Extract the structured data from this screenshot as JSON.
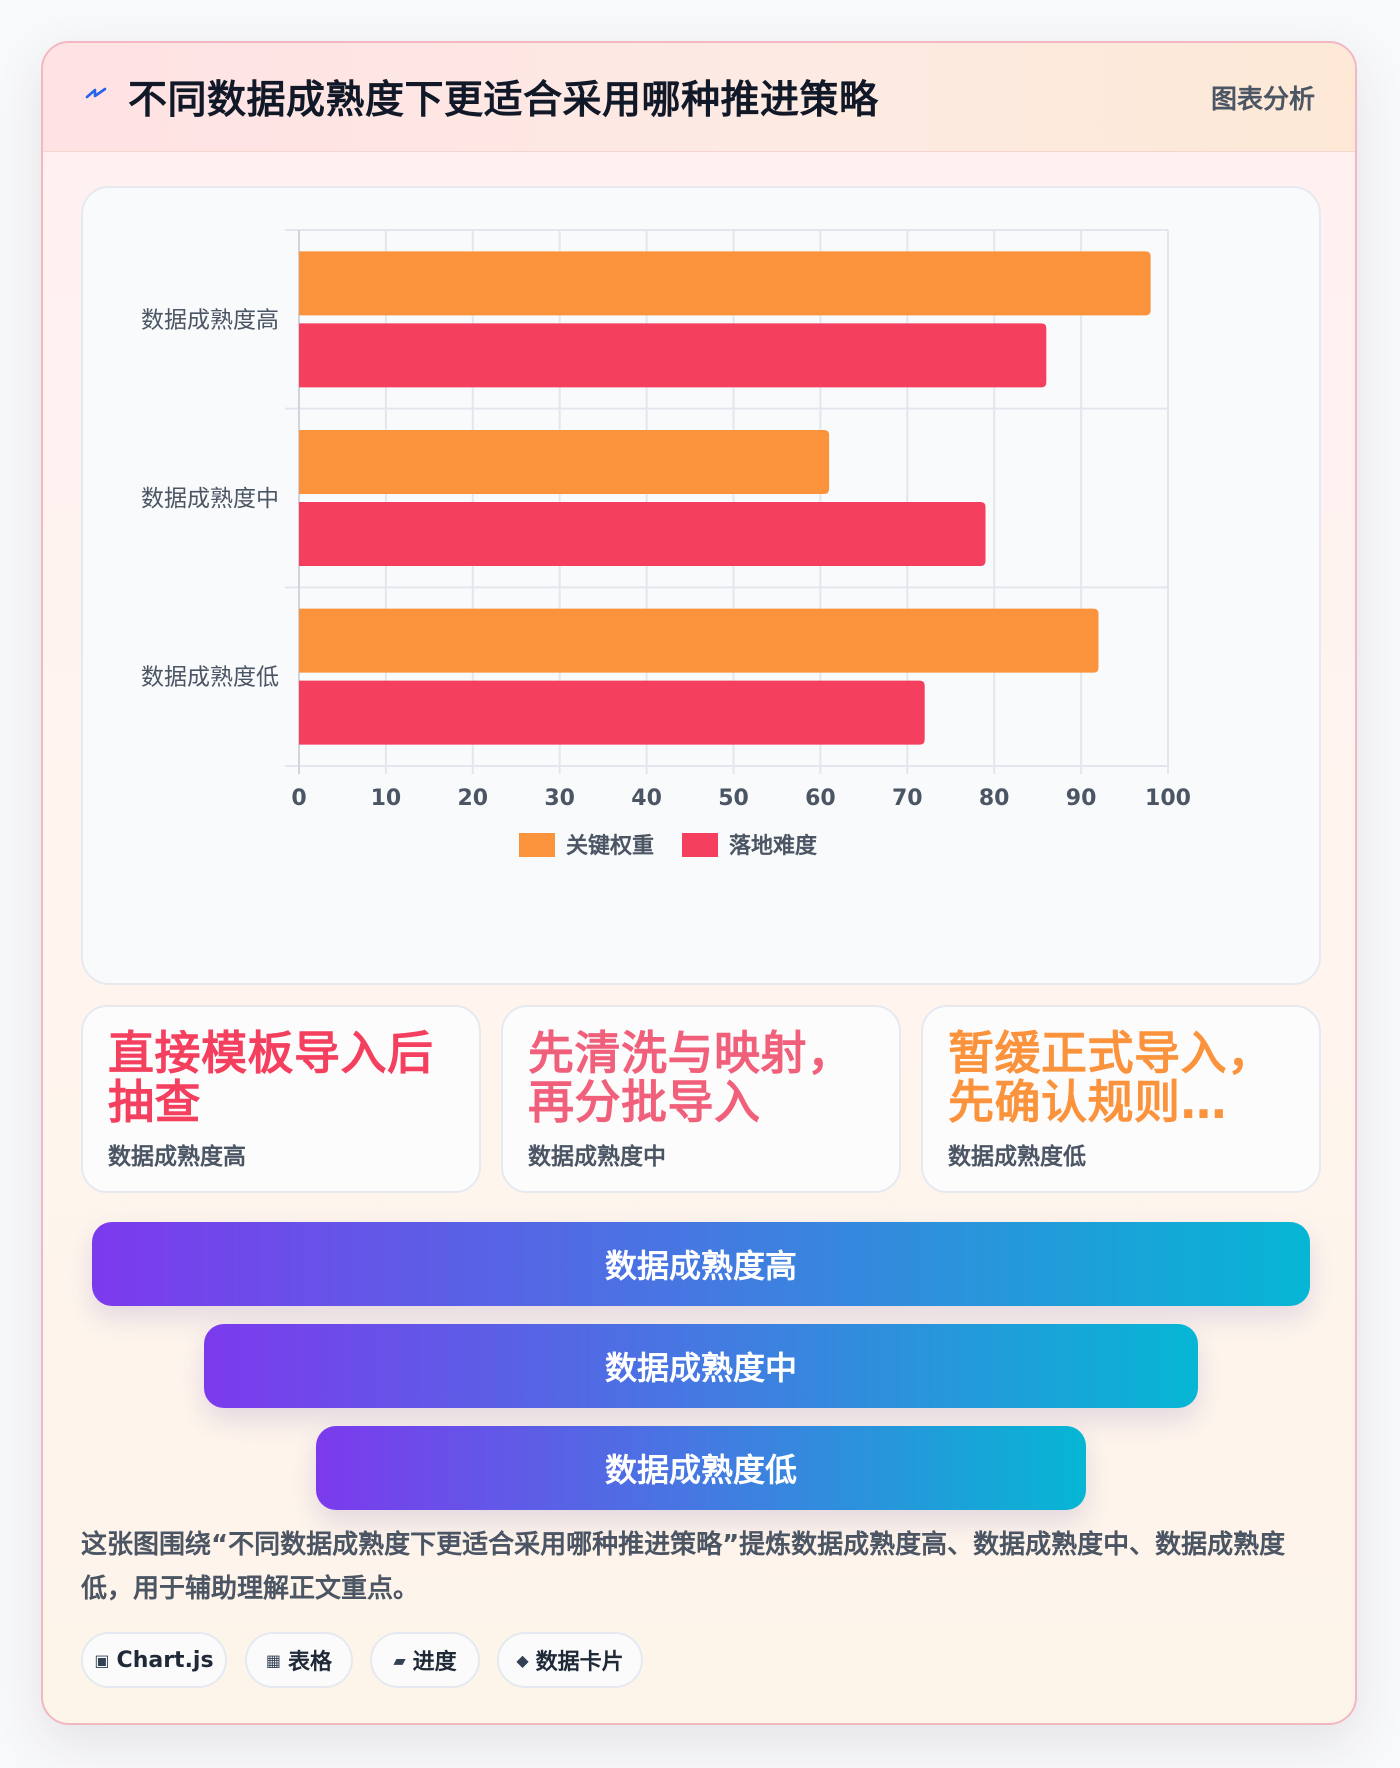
{
  "header": {
    "title": "不同数据成熟度下更适合采用哪种推进策略",
    "tag": "图表分析"
  },
  "chart_data": {
    "type": "bar",
    "orientation": "horizontal",
    "categories": [
      "数据成熟度高",
      "数据成熟度中",
      "数据成熟度低"
    ],
    "series": [
      {
        "name": "关键权重",
        "color": "#fb923c",
        "values": [
          98,
          61,
          92
        ]
      },
      {
        "name": "落地难度",
        "color": "#f43f5e",
        "values": [
          86,
          79,
          72
        ]
      }
    ],
    "xlim": [
      0,
      100
    ],
    "xticks": [
      0,
      10,
      20,
      30,
      40,
      50,
      60,
      70,
      80,
      90,
      100
    ],
    "grid": true,
    "legend": "bottom"
  },
  "metrics": [
    {
      "value": "直接模板导入后抽查",
      "label": "数据成熟度高",
      "color": "#f43f5e"
    },
    {
      "value": "先清洗与映射，再分批导入",
      "label": "数据成熟度中",
      "color": "#f1607a"
    },
    {
      "value": "暂缓正式导入，先确认规则…",
      "label": "数据成熟度低",
      "color": "#fb923c"
    }
  ],
  "funnel": [
    "数据成熟度高",
    "数据成熟度中",
    "数据成熟度低"
  ],
  "summary": "这张图围绕“不同数据成熟度下更适合采用哪种推进策略”提炼数据成熟度高、数据成熟度中、数据成熟度低，用于辅助理解正文重点。",
  "chips": [
    {
      "icon": "chart-icon",
      "glyph": "▣",
      "label": "Chart.js"
    },
    {
      "icon": "table-icon",
      "glyph": "▦",
      "label": "表格"
    },
    {
      "icon": "progress-icon",
      "glyph": "▰",
      "label": "进度"
    },
    {
      "icon": "data-card-icon",
      "glyph": "◆",
      "label": "数据卡片"
    }
  ]
}
